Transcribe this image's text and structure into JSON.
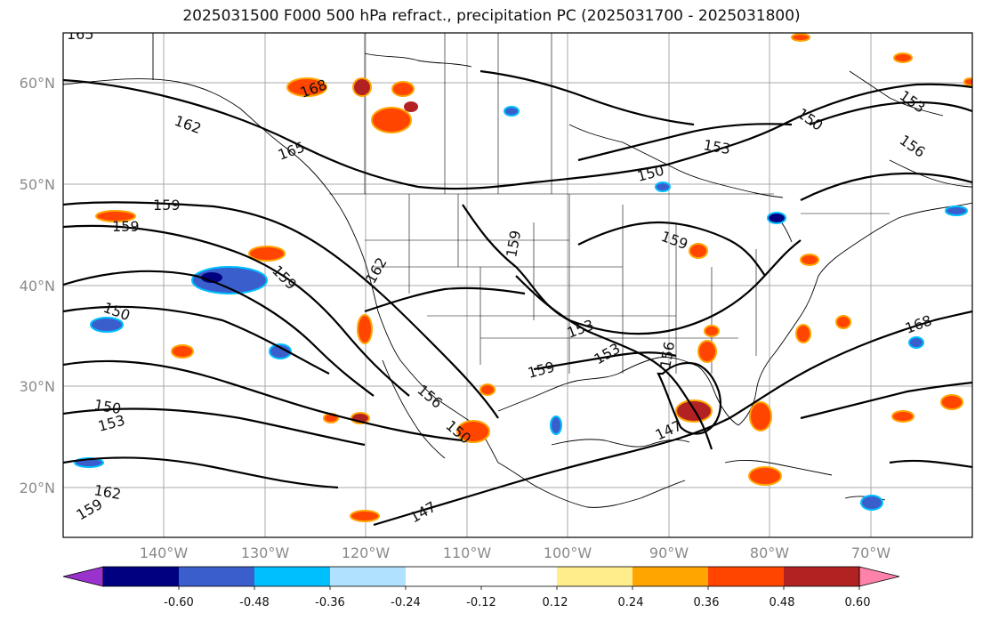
{
  "title": "2025031500 F000 500 hPa refract., precipitation PC (2025031700 - 2025031800)",
  "lat_labels": [
    "60°N",
    "50°N",
    "40°N",
    "30°N",
    "20°N"
  ],
  "lon_labels": [
    "140°W",
    "130°W",
    "120°W",
    "110°W",
    "100°W",
    "90°W",
    "80°W",
    "70°W"
  ],
  "colorbar": {
    "colors": [
      "#9a32cd",
      "#000080",
      "#3a5fcd",
      "#00bfff",
      "#b0e2ff",
      "#ffffff",
      "#ffffff",
      "#ffec8b",
      "#ffa500",
      "#ff4500",
      "#b22222",
      "#ff82ab"
    ],
    "tick_labels": [
      "-0.60",
      "-0.48",
      "-0.36",
      "-0.24",
      "-0.12",
      "0.12",
      "0.24",
      "0.36",
      "0.48",
      "0.60"
    ]
  },
  "contour_labels": [
    "165",
    "168",
    "162",
    "165",
    "159",
    "159",
    "159",
    "150",
    "162",
    "159",
    "153",
    "159",
    "156",
    "150",
    "153",
    "147",
    "150",
    "153",
    "156",
    "159",
    "150",
    "153",
    "150",
    "153",
    "156",
    "168",
    "162",
    "159",
    "165",
    "147"
  ]
}
